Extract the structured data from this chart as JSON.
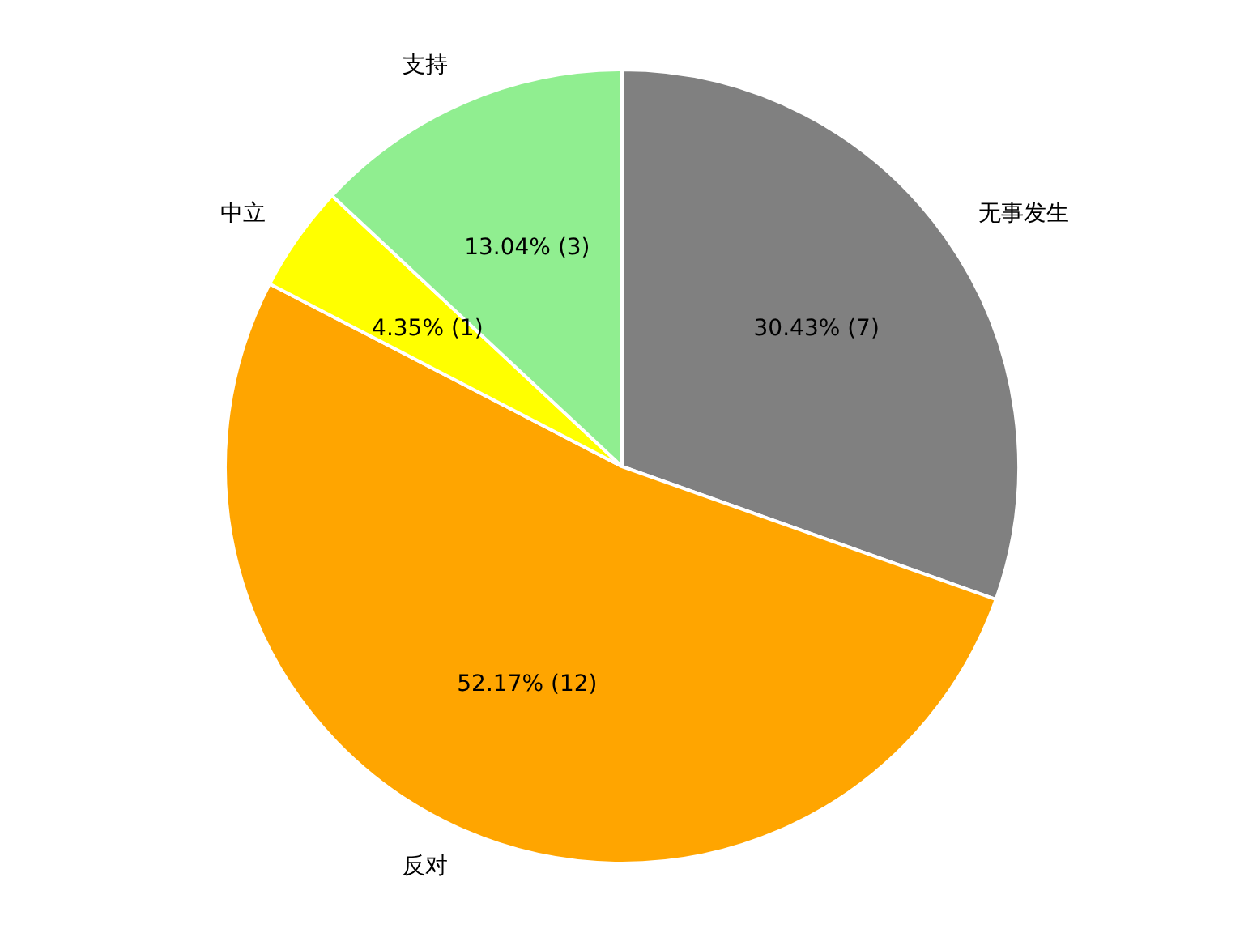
{
  "chart_data": {
    "type": "pie",
    "categories": [
      "无事发生",
      "反对",
      "中立",
      "支持"
    ],
    "values": [
      7,
      12,
      1,
      3
    ],
    "colors": [
      "#808080",
      "#ffa500",
      "#ffff00",
      "#90ee90"
    ],
    "value_labels": [
      "30.43% (7)",
      "52.17% (12)",
      "4.35% (1)",
      "13.04% (3)"
    ],
    "legend": false
  }
}
